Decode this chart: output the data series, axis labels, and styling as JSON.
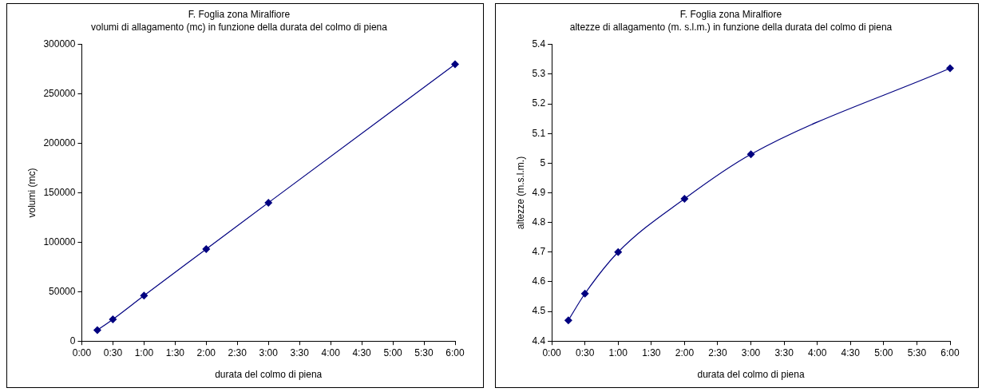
{
  "chart_data": [
    {
      "type": "line",
      "title": "F. Foglia zona Miralfiore",
      "subtitle": "volumi di allagamento (mc) in funzione della durata del colmo di piena",
      "xlabel": "durata del colmo di piena",
      "ylabel": "volumi (mc)",
      "x": [
        0.25,
        0.5,
        1,
        2,
        3,
        6
      ],
      "series": [
        {
          "color": "#000080",
          "values": [
            11000,
            22000,
            46000,
            93000,
            140000,
            280000
          ]
        }
      ],
      "xlim": [
        0,
        6
      ],
      "xticks": [
        {
          "value": 0,
          "label": "0:00"
        },
        {
          "value": 0.5,
          "label": "0:30"
        },
        {
          "value": 1,
          "label": "1:00"
        },
        {
          "value": 1.5,
          "label": "1:30"
        },
        {
          "value": 2,
          "label": "2:00"
        },
        {
          "value": 2.5,
          "label": "2:30"
        },
        {
          "value": 3,
          "label": "3:00"
        },
        {
          "value": 3.5,
          "label": "3:30"
        },
        {
          "value": 4,
          "label": "4:00"
        },
        {
          "value": 4.5,
          "label": "4:30"
        },
        {
          "value": 5,
          "label": "5:00"
        },
        {
          "value": 5.5,
          "label": "5:30"
        },
        {
          "value": 6,
          "label": "6:00"
        }
      ],
      "ylim": [
        0,
        300000
      ],
      "yticks": [
        0,
        50000,
        100000,
        150000,
        200000,
        250000,
        300000
      ],
      "grid": false,
      "legend": false,
      "marker": "diamond",
      "line_style": "solid"
    },
    {
      "type": "line",
      "title": "F. Foglia zona Miralfiore",
      "subtitle": "altezze di allagamento (m. s.l.m.) in funzione della durata del colmo di piena",
      "xlabel": "durata del colmo di piena",
      "ylabel": "altezze (m.s.l.m.)",
      "x": [
        0.25,
        0.5,
        1,
        2,
        3,
        6
      ],
      "series": [
        {
          "color": "#000080",
          "values": [
            4.47,
            4.56,
            4.7,
            4.88,
            5.03,
            5.32
          ]
        }
      ],
      "xlim": [
        0,
        6
      ],
      "xticks": [
        {
          "value": 0,
          "label": "0:00"
        },
        {
          "value": 0.5,
          "label": "0:30"
        },
        {
          "value": 1,
          "label": "1:00"
        },
        {
          "value": 1.5,
          "label": "1:30"
        },
        {
          "value": 2,
          "label": "2:00"
        },
        {
          "value": 2.5,
          "label": "2:30"
        },
        {
          "value": 3,
          "label": "3:00"
        },
        {
          "value": 3.5,
          "label": "3:30"
        },
        {
          "value": 4,
          "label": "4:00"
        },
        {
          "value": 4.5,
          "label": "4:30"
        },
        {
          "value": 5,
          "label": "5:00"
        },
        {
          "value": 5.5,
          "label": "5:30"
        },
        {
          "value": 6,
          "label": "6:00"
        }
      ],
      "ylim": [
        4.4,
        5.4
      ],
      "yticks": [
        4.4,
        4.5,
        4.6,
        4.7,
        4.8,
        4.9,
        5,
        5.1,
        5.2,
        5.3,
        5.4
      ],
      "grid": false,
      "legend": false,
      "marker": "diamond",
      "line_style": "solid"
    }
  ]
}
